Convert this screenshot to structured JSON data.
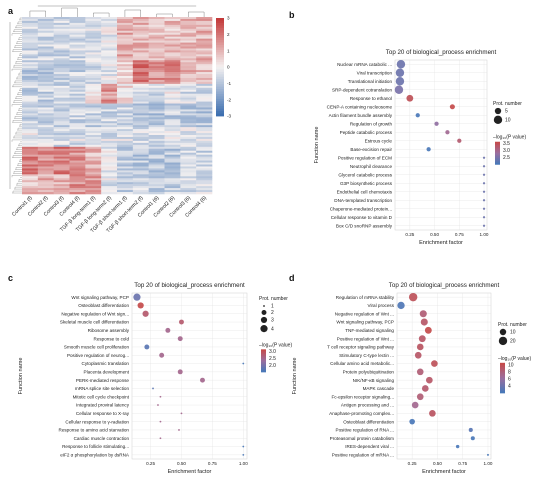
{
  "panels": {
    "a": "a",
    "b": "b",
    "c": "c",
    "d": "d"
  },
  "colors": {
    "heat_low": "#3d6fb0",
    "heat_mid": "#f4f1f1",
    "heat_high": "#c43a3a",
    "dot_high": "#c44b4b",
    "dot_mid": "#9c6e9e",
    "dot_low": "#4a78b8"
  },
  "chart_data": [
    {
      "panel": "a",
      "type": "heatmap",
      "columns": [
        "Control1 (f)",
        "Control2 (f)",
        "Control3 (f)",
        "Control4 (f)",
        "TGF-β long-term1 (f)",
        "TGF-β long-term2 (f)",
        "TGF-β short-term1 (f)",
        "TGF-β short-term2 (f)",
        "Control1 (6)",
        "Control2 (6)",
        "Control3 (6)",
        "Control4 (6)"
      ],
      "color_scale": {
        "ticks": [
          3,
          2,
          1,
          0,
          -1,
          -2,
          -3
        ],
        "min": -3,
        "max": 3
      }
    },
    {
      "panel": "b",
      "type": "scatter",
      "title": "Top 20 of biological_process enrichment",
      "xlabel": "Enrichment factor",
      "ylabel": "Function name",
      "xticks": [
        "0.25",
        "0.50",
        "0.75",
        "1.00"
      ],
      "xlim": [
        0.1,
        1.03
      ],
      "size_legend_title": "Prot. number",
      "size_legend": [
        5,
        10
      ],
      "color_legend_title": "–log₁₀(P value)",
      "color_legend": [
        3.5,
        3.0,
        2.5
      ],
      "terms": [
        "Nuclear mRNA catabolic ...",
        "Viral transcription",
        "Translational initiation",
        "SRP-dependent cotranslation",
        "Response to ethanol",
        "CENP-A containing nucleosome",
        "Actin filament bundle assembly",
        "Regulation of growth",
        "Peptide catabolic process",
        "Estrous cycle",
        "Base-excision repair",
        "Positive regulation of ECM",
        "Neutrophil clearance",
        "Glycerol catabolic process",
        "G3P biosynthetic process",
        "Endothelial cell chemotaxis",
        "DNA-templated transcription",
        "Chaperone-mediated protein...",
        "Cellular response to vitamin D",
        "Box C/D snoRNP assembly"
      ],
      "x": [
        0.16,
        0.15,
        0.15,
        0.14,
        0.25,
        0.68,
        0.33,
        0.52,
        0.63,
        0.75,
        0.44,
        1.0,
        1.0,
        1.0,
        1.0,
        1.0,
        1.0,
        1.0,
        1.0,
        1.0
      ],
      "size": [
        10,
        10,
        10,
        10,
        6,
        3,
        2,
        2,
        2,
        2,
        2,
        1,
        1,
        1,
        1,
        1,
        1,
        1,
        1,
        1
      ],
      "neglog10p": [
        2.6,
        2.6,
        2.6,
        2.7,
        3.6,
        3.7,
        2.3,
        2.9,
        3.1,
        3.4,
        2.3,
        2.6,
        2.6,
        2.6,
        2.6,
        2.6,
        2.6,
        2.6,
        2.6,
        2.6
      ]
    },
    {
      "panel": "c",
      "type": "scatter",
      "title": "Top 20 of biological_process enrichment",
      "xlabel": "Enrichment factor",
      "ylabel": "Function name",
      "xticks": [
        "0.25",
        "0.50",
        "0.75",
        "1.00"
      ],
      "xlim": [
        0.1,
        1.03
      ],
      "size_legend_title": "Prot. number",
      "size_legend": [
        1,
        2,
        3,
        4
      ],
      "color_legend_title": "–log₁₀(P value)",
      "color_legend": [
        3.0,
        2.5,
        2.0
      ],
      "terms": [
        "Wnt signaling pathway, PCP",
        "Osteoblast differentiation",
        "Negative regulation of Wnt sign...",
        "Skeletal muscle cell differentiation",
        "Ribosome assembly",
        "Response to cold",
        "Smooth muscle cell proliferation",
        "Positive regulation of neurog...",
        "Cytoplasmic translation",
        "Placenta development",
        "PERK-mediated response",
        "mRNA splice site selection",
        "Mitotic cell cycle checkpoint",
        "Integrated proviral latency",
        "Cellular response to X-ray",
        "Cellular response to γ-radiation",
        "Response to amino acid starvation",
        "Cardiac muscle contraction",
        "Response to follicle stimulating...",
        "eIF2 α phosphorylation by dsRNA"
      ],
      "x": [
        0.14,
        0.17,
        0.21,
        0.5,
        0.39,
        0.49,
        0.22,
        0.34,
        1.0,
        0.49,
        0.67,
        0.27,
        0.33,
        0.31,
        0.5,
        0.33,
        0.48,
        0.33,
        1.0,
        1.0
      ],
      "size": [
        4,
        3,
        3,
        2,
        2,
        2,
        2,
        2,
        1,
        2,
        2,
        1,
        1,
        1,
        1,
        1,
        1,
        1,
        1,
        1
      ],
      "neglog10p": [
        2.2,
        3.0,
        2.8,
        2.8,
        2.6,
        2.6,
        2.1,
        2.6,
        2.0,
        2.6,
        2.6,
        2.1,
        2.6,
        2.6,
        2.6,
        2.6,
        2.6,
        2.6,
        2.0,
        2.0
      ]
    },
    {
      "panel": "d",
      "type": "scatter",
      "title": "Top 20 of biological_process enrichment",
      "xlabel": "Enrichment factor",
      "ylabel": "Function name",
      "xticks": [
        "0.25",
        "0.50",
        "0.75",
        "1.00"
      ],
      "xlim": [
        0.1,
        1.03
      ],
      "size_legend_title": "Prot. number",
      "size_legend": [
        10,
        20
      ],
      "color_legend_title": "–log₁₀(P value)",
      "color_legend": [
        10,
        8,
        6,
        4
      ],
      "terms": [
        "Regulation of mRNA stability",
        "Viral process",
        "Negative regulation of Wnt ...",
        "Wnt signaling pathway, PCP",
        "TNF-mediated signaling",
        "Positive regulation of Wnt ...",
        "T cell receptor signaling pathway",
        "Stimulatory C-type lectin ...",
        "Cellular amino acid metabolic...",
        "Protein polyubiquitination",
        "NIK/NF-κB signaling",
        "MAPK cascade",
        "Fc-epsilon receptor signaling...",
        "Antigen processing and ...",
        "Anaphase-promoting complex...",
        "Osteoblast differentiation",
        "Positive regulation of RNA ...",
        "Proteasomal protein catabolism",
        "IRES-dependent viral ...",
        "Positive regulation of mRNA ..."
      ],
      "x": [
        0.26,
        0.14,
        0.36,
        0.37,
        0.41,
        0.35,
        0.33,
        0.31,
        0.47,
        0.33,
        0.42,
        0.38,
        0.33,
        0.28,
        0.45,
        0.25,
        0.83,
        0.85,
        0.7,
        1.0
      ],
      "size": [
        20,
        14,
        13,
        13,
        12,
        12,
        11,
        11,
        11,
        11,
        11,
        11,
        11,
        11,
        11,
        7,
        3,
        3,
        2,
        1
      ],
      "neglog10p": [
        9.5,
        4.2,
        8.5,
        9.0,
        10.0,
        9.0,
        9.2,
        9.0,
        9.5,
        8.5,
        9.0,
        8.8,
        8.5,
        7.5,
        9.2,
        4.0,
        4.5,
        4.0,
        4.0,
        4.0
      ]
    }
  ]
}
